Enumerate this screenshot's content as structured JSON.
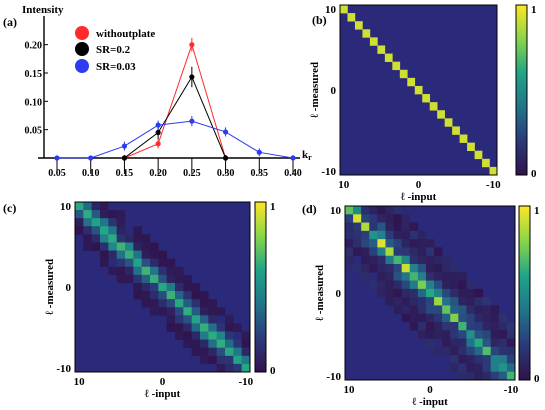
{
  "chart_data": [
    {
      "panel": "(a)",
      "type": "line",
      "ylabel": "Intensity",
      "xlabel": "k",
      "xlabel_sub": "r",
      "x": [
        0.05,
        0.1,
        0.15,
        0.2,
        0.25,
        0.3,
        0.35,
        0.4
      ],
      "x_tick_labels": [
        "0.05",
        "0.10",
        "0.15",
        "0.20",
        "0.25",
        "0.30",
        "0.35",
        "0.40"
      ],
      "y_tick_labels": [
        "0.05",
        "0.10",
        "0.15",
        "0.20"
      ],
      "xlim": [
        0.025,
        0.41
      ],
      "ylim": [
        0,
        0.24
      ],
      "legend_position": "top-left",
      "series": [
        {
          "name": "withoutplate",
          "color": "#ff2a2a",
          "x": [
            0.15,
            0.2,
            0.25,
            0.3
          ],
          "values": [
            0.0,
            0.025,
            0.2,
            0.0
          ],
          "errors": [
            0.005,
            0.008,
            0.012,
            0.005
          ]
        },
        {
          "name": "SR=0.2",
          "color": "#000000",
          "x": [
            0.15,
            0.2,
            0.25,
            0.3
          ],
          "values": [
            0.0,
            0.045,
            0.143,
            0.0
          ],
          "errors": [
            0.005,
            0.012,
            0.018,
            0.005
          ]
        },
        {
          "name": "SR=0.03",
          "color": "#2d3cf0",
          "x": [
            0.05,
            0.1,
            0.15,
            0.2,
            0.25,
            0.3,
            0.35,
            0.4
          ],
          "values": [
            0.0,
            0.0,
            0.021,
            0.058,
            0.065,
            0.046,
            0.01,
            0.0
          ],
          "errors": [
            0.003,
            0.004,
            0.008,
            0.008,
            0.009,
            0.008,
            0.007,
            0.005
          ]
        }
      ]
    },
    {
      "panel": "(b)",
      "type": "heatmap",
      "xlabel": "ℓ -input",
      "ylabel": "ℓ -measured",
      "x_tick_labels": [
        "10",
        "0",
        "-10"
      ],
      "y_tick_labels": [
        "10",
        "0",
        "-10"
      ],
      "colorbar_ticks": [
        "1",
        "0"
      ],
      "grid_size": 21,
      "offdiag_width": 0,
      "decay": [
        1
      ]
    },
    {
      "panel": "(c)",
      "type": "heatmap",
      "xlabel": "ℓ -input",
      "ylabel": "ℓ -measured",
      "x_tick_labels": [
        "10",
        "0",
        "-10"
      ],
      "y_tick_labels": [
        "10",
        "0",
        "-10"
      ],
      "colorbar_ticks": [
        "1",
        "0"
      ],
      "grid_size": 21,
      "offdiag_width": 2,
      "decay": [
        0.55,
        0.32,
        0.12
      ]
    },
    {
      "panel": "(d)",
      "type": "heatmap",
      "xlabel": "ℓ -input",
      "ylabel": "ℓ -measured",
      "x_tick_labels": [
        "10",
        "0",
        "-10"
      ],
      "y_tick_labels": [
        "10",
        "0",
        "-10"
      ],
      "colorbar_ticks": [
        "1",
        "0"
      ],
      "grid_size": 21,
      "offdiag_width": 4,
      "decay": [
        0.5,
        0.33,
        0.2,
        0.1,
        0.05
      ]
    }
  ],
  "colorscale": [
    "#30124d",
    "#2b3a7a",
    "#22748a",
    "#20a486",
    "#8ad548",
    "#fde725"
  ],
  "cmap_bg": "#2b2a7a"
}
